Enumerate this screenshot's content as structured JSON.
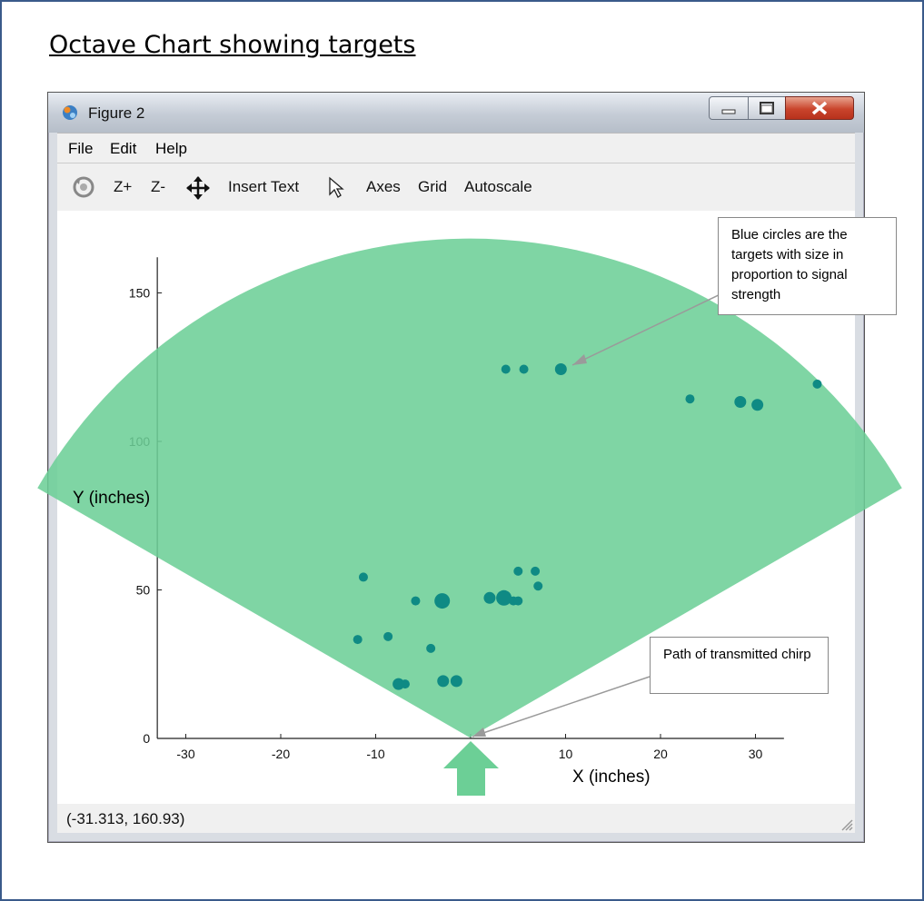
{
  "slide": {
    "title": "Octave Chart showing targets"
  },
  "window": {
    "title": "Figure 2",
    "menu": [
      "File",
      "Edit",
      "Help"
    ],
    "toolbar": {
      "zoom_in": "Z+",
      "zoom_out": "Z-",
      "insert_text": "Insert Text",
      "axes": "Axes",
      "grid": "Grid",
      "autoscale": "Autoscale"
    },
    "status": "(-31.313, 160.93)"
  },
  "annotations": {
    "targets_note": "Blue circles are the targets with size in proportion to signal strength",
    "chirp_note": "Path of transmitted chirp"
  },
  "colors": {
    "beam": "#6ccf96",
    "target": "#0f8a84",
    "arrow": "#6ccf96"
  },
  "chart_data": {
    "type": "scatter",
    "title": "",
    "xlabel": "X (inches)",
    "ylabel": "Y (inches)",
    "xlim": [
      -33,
      33
    ],
    "ylim": [
      0,
      162
    ],
    "xticks": [
      -30,
      -20,
      -10,
      0,
      10,
      20,
      30
    ],
    "yticks": [
      0,
      50,
      100,
      150
    ],
    "grid": false,
    "beam": {
      "origin": [
        0,
        0
      ],
      "half_angle_deg": 60,
      "radius_in": 168
    },
    "points": [
      {
        "x": 3.8,
        "y": 124,
        "s": 2
      },
      {
        "x": 5.7,
        "y": 124,
        "s": 2
      },
      {
        "x": 9.6,
        "y": 124,
        "s": 3
      },
      {
        "x": 23.2,
        "y": 114,
        "s": 2
      },
      {
        "x": 28.5,
        "y": 113,
        "s": 3
      },
      {
        "x": 30.3,
        "y": 112,
        "s": 3
      },
      {
        "x": 36.6,
        "y": 119,
        "s": 2
      },
      {
        "x": -11.2,
        "y": 54,
        "s": 2
      },
      {
        "x": 5.1,
        "y": 56,
        "s": 2
      },
      {
        "x": 6.9,
        "y": 56,
        "s": 2
      },
      {
        "x": 7.2,
        "y": 51,
        "s": 2
      },
      {
        "x": -5.7,
        "y": 46,
        "s": 2
      },
      {
        "x": -2.9,
        "y": 46,
        "s": 4
      },
      {
        "x": 2.1,
        "y": 47,
        "s": 3
      },
      {
        "x": 3.6,
        "y": 47,
        "s": 4
      },
      {
        "x": 4.6,
        "y": 46,
        "s": 2
      },
      {
        "x": 5.1,
        "y": 46,
        "s": 2
      },
      {
        "x": -11.8,
        "y": 33,
        "s": 2
      },
      {
        "x": -8.6,
        "y": 34,
        "s": 2
      },
      {
        "x": -4.1,
        "y": 30,
        "s": 2
      },
      {
        "x": -7.5,
        "y": 18,
        "s": 3
      },
      {
        "x": -6.8,
        "y": 18,
        "s": 2
      },
      {
        "x": -2.8,
        "y": 19,
        "s": 3
      },
      {
        "x": -1.4,
        "y": 19,
        "s": 3
      }
    ]
  }
}
